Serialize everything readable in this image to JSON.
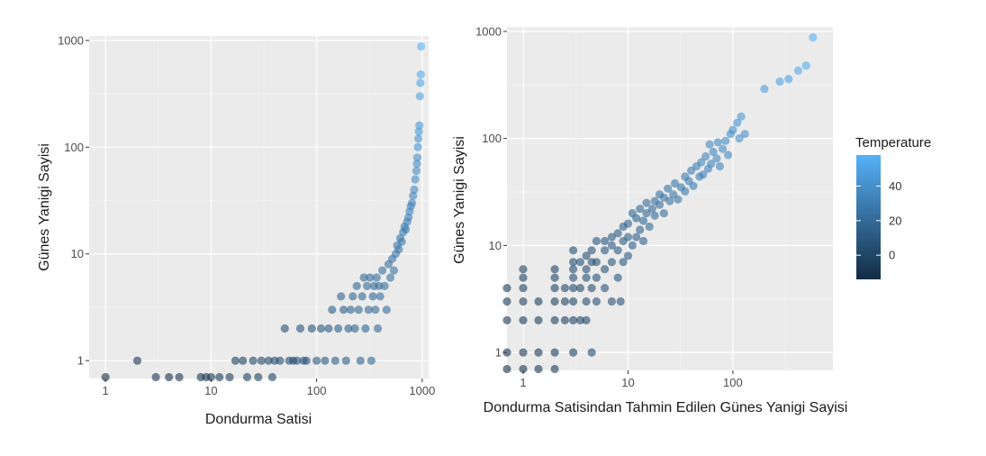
{
  "colors": {
    "panel_bg": "#ebebeb",
    "grid_major": "#ffffff",
    "grid_minor": "#f4f4f4",
    "gradient_low": "#132b43",
    "gradient_high": "#56b1f7"
  },
  "legend": {
    "title": "Temperature",
    "breaks": [
      0,
      20,
      40
    ],
    "break_labels": [
      "0",
      "20",
      "40"
    ],
    "range": [
      -14,
      58
    ],
    "placement": "right"
  },
  "chart_data": [
    {
      "type": "scatter",
      "xlabel": "Dondurma Satisi",
      "ylabel": "Günes Yanigi Sayisi",
      "x_scale": "log10",
      "y_scale": "log10",
      "xlim": [
        0.7,
        1150
      ],
      "ylim": [
        0.68,
        1100
      ],
      "x_ticks": [
        1,
        10,
        100,
        1000
      ],
      "x_tick_labels": [
        "1",
        "10",
        "100",
        "1000"
      ],
      "y_ticks": [
        1,
        10,
        100,
        1000
      ],
      "y_tick_labels": [
        "1",
        "10",
        "100",
        "1000"
      ],
      "grid": true,
      "points": [
        [
          1,
          0.7,
          -12
        ],
        [
          2,
          1,
          -8
        ],
        [
          3,
          0.7,
          -9
        ],
        [
          4,
          0.7,
          -10
        ],
        [
          5,
          0.7,
          -9
        ],
        [
          8,
          0.7,
          -8
        ],
        [
          9,
          0.7,
          -7
        ],
        [
          10,
          0.7,
          -7
        ],
        [
          12,
          0.7,
          -6
        ],
        [
          15,
          0.7,
          -6
        ],
        [
          17,
          1,
          -3
        ],
        [
          20,
          1,
          -2
        ],
        [
          22,
          0.7,
          -4
        ],
        [
          25,
          1,
          0
        ],
        [
          28,
          0.7,
          -2
        ],
        [
          30,
          1,
          1
        ],
        [
          35,
          1,
          2
        ],
        [
          38,
          0.7,
          -1
        ],
        [
          40,
          1,
          3
        ],
        [
          45,
          1,
          4
        ],
        [
          50,
          2,
          6
        ],
        [
          55,
          1,
          5
        ],
        [
          60,
          1,
          6
        ],
        [
          65,
          1,
          7
        ],
        [
          70,
          2,
          8
        ],
        [
          75,
          1,
          7
        ],
        [
          80,
          1,
          8
        ],
        [
          90,
          2,
          9
        ],
        [
          100,
          1,
          10
        ],
        [
          110,
          2,
          11
        ],
        [
          120,
          1,
          10
        ],
        [
          130,
          2,
          12
        ],
        [
          140,
          3,
          13
        ],
        [
          150,
          1,
          12
        ],
        [
          160,
          2,
          14
        ],
        [
          170,
          4,
          15
        ],
        [
          180,
          3,
          15
        ],
        [
          190,
          1,
          13
        ],
        [
          200,
          2,
          16
        ],
        [
          210,
          3,
          17
        ],
        [
          220,
          4,
          17
        ],
        [
          230,
          2,
          16
        ],
        [
          240,
          5,
          18
        ],
        [
          250,
          3,
          18
        ],
        [
          260,
          1,
          15
        ],
        [
          270,
          4,
          19
        ],
        [
          280,
          6,
          20
        ],
        [
          290,
          2,
          18
        ],
        [
          300,
          5,
          20
        ],
        [
          310,
          3,
          19
        ],
        [
          320,
          6,
          21
        ],
        [
          330,
          1,
          17
        ],
        [
          340,
          4,
          20
        ],
        [
          350,
          5,
          21
        ],
        [
          360,
          3,
          20
        ],
        [
          370,
          6,
          22
        ],
        [
          380,
          2,
          19
        ],
        [
          390,
          5,
          22
        ],
        [
          400,
          4,
          22
        ],
        [
          420,
          7,
          23
        ],
        [
          440,
          5,
          23
        ],
        [
          460,
          3,
          21
        ],
        [
          480,
          8,
          24
        ],
        [
          500,
          6,
          24
        ],
        [
          520,
          9,
          25
        ],
        [
          540,
          7,
          25
        ],
        [
          560,
          10,
          26
        ],
        [
          580,
          12,
          27
        ],
        [
          600,
          11,
          27
        ],
        [
          620,
          14,
          28
        ],
        [
          640,
          13,
          28
        ],
        [
          660,
          16,
          29
        ],
        [
          680,
          18,
          30
        ],
        [
          700,
          17,
          30
        ],
        [
          720,
          20,
          31
        ],
        [
          740,
          22,
          32
        ],
        [
          760,
          25,
          33
        ],
        [
          780,
          28,
          34
        ],
        [
          800,
          30,
          34
        ],
        [
          820,
          35,
          35
        ],
        [
          840,
          40,
          36
        ],
        [
          860,
          50,
          38
        ],
        [
          880,
          60,
          39
        ],
        [
          890,
          70,
          40
        ],
        [
          900,
          80,
          41
        ],
        [
          910,
          100,
          43
        ],
        [
          920,
          120,
          44
        ],
        [
          930,
          140,
          45
        ],
        [
          940,
          160,
          46
        ],
        [
          950,
          300,
          50
        ],
        [
          960,
          400,
          52
        ],
        [
          970,
          480,
          54
        ],
        [
          975,
          880,
          58
        ]
      ]
    },
    {
      "type": "scatter",
      "xlabel": "Dondurma Satisindan Tahmin Edilen Günes Yanigi Sayisi",
      "ylabel": "Günes Yanigi Sayisi",
      "x_scale": "log10",
      "y_scale": "log10",
      "xlim": [
        0.7,
        900
      ],
      "ylim": [
        0.68,
        1100
      ],
      "x_ticks": [
        1,
        10,
        100
      ],
      "x_tick_labels": [
        "1",
        "10",
        "100"
      ],
      "y_ticks": [
        1,
        10,
        100,
        1000
      ],
      "y_tick_labels": [
        "1",
        "10",
        "100",
        "1000"
      ],
      "grid": true,
      "points": [
        [
          0.7,
          0.7,
          -11
        ],
        [
          0.7,
          1,
          -9
        ],
        [
          0.7,
          2,
          -7
        ],
        [
          0.7,
          3,
          -6
        ],
        [
          0.7,
          4,
          -5
        ],
        [
          1,
          0.7,
          -9
        ],
        [
          1,
          1,
          -7
        ],
        [
          1,
          2,
          -5
        ],
        [
          1,
          3,
          -4
        ],
        [
          1,
          4,
          -3
        ],
        [
          1,
          5,
          -2
        ],
        [
          1,
          6,
          -1
        ],
        [
          1.4,
          0.7,
          -8
        ],
        [
          1.4,
          1,
          -6
        ],
        [
          1.4,
          2,
          -4
        ],
        [
          1.4,
          3,
          -3
        ],
        [
          2,
          0.7,
          -6
        ],
        [
          2,
          1,
          -5
        ],
        [
          2,
          2,
          -3
        ],
        [
          2,
          3,
          -2
        ],
        [
          2,
          4,
          -1
        ],
        [
          2,
          5,
          0
        ],
        [
          2,
          6,
          1
        ],
        [
          2.5,
          2,
          -1
        ],
        [
          2.5,
          3,
          0
        ],
        [
          2.5,
          4,
          1
        ],
        [
          3,
          1,
          -2
        ],
        [
          3,
          2,
          0
        ],
        [
          3,
          3,
          1
        ],
        [
          3,
          4,
          2
        ],
        [
          3,
          5,
          3
        ],
        [
          3,
          6,
          4
        ],
        [
          3,
          7,
          5
        ],
        [
          3,
          9,
          6
        ],
        [
          3.5,
          2,
          1
        ],
        [
          3.5,
          4,
          3
        ],
        [
          3.5,
          7,
          5
        ],
        [
          4,
          2,
          2
        ],
        [
          4,
          3,
          3
        ],
        [
          4,
          5,
          4
        ],
        [
          4,
          6,
          5
        ],
        [
          4,
          8,
          7
        ],
        [
          4.5,
          1,
          3
        ],
        [
          4.5,
          4,
          5
        ],
        [
          4.5,
          7,
          6
        ],
        [
          4.5,
          9,
          8
        ],
        [
          5,
          3,
          5
        ],
        [
          5,
          5,
          6
        ],
        [
          5,
          7,
          7
        ],
        [
          5,
          11,
          9
        ],
        [
          6,
          4,
          7
        ],
        [
          6,
          6,
          8
        ],
        [
          6,
          9,
          10
        ],
        [
          6,
          11,
          10
        ],
        [
          7,
          3,
          6
        ],
        [
          7,
          7,
          9
        ],
        [
          7,
          10,
          11
        ],
        [
          7,
          12,
          12
        ],
        [
          8,
          5,
          9
        ],
        [
          8,
          9,
          11
        ],
        [
          8,
          13,
          13
        ],
        [
          8.5,
          3,
          8
        ],
        [
          9,
          7,
          11
        ],
        [
          9,
          11,
          13
        ],
        [
          9,
          15,
          14
        ],
        [
          10,
          8,
          12
        ],
        [
          10,
          12,
          14
        ],
        [
          10,
          16,
          15
        ],
        [
          11,
          10,
          14
        ],
        [
          11,
          20,
          17
        ],
        [
          12,
          12,
          15
        ],
        [
          12,
          18,
          17
        ],
        [
          13,
          14,
          16
        ],
        [
          13,
          22,
          18
        ],
        [
          14,
          11,
          15
        ],
        [
          14,
          17,
          18
        ],
        [
          15,
          20,
          19
        ],
        [
          15,
          25,
          20
        ],
        [
          16,
          15,
          18
        ],
        [
          17,
          22,
          20
        ],
        [
          18,
          19,
          20
        ],
        [
          18,
          26,
          22
        ],
        [
          20,
          24,
          22
        ],
        [
          20,
          30,
          23
        ],
        [
          22,
          20,
          21
        ],
        [
          22,
          28,
          23
        ],
        [
          24,
          34,
          25
        ],
        [
          25,
          26,
          24
        ],
        [
          27,
          30,
          26
        ],
        [
          28,
          38,
          27
        ],
        [
          30,
          27,
          25
        ],
        [
          32,
          35,
          27
        ],
        [
          35,
          32,
          27
        ],
        [
          35,
          44,
          29
        ],
        [
          38,
          40,
          29
        ],
        [
          40,
          50,
          31
        ],
        [
          42,
          36,
          29
        ],
        [
          45,
          55,
          32
        ],
        [
          48,
          44,
          31
        ],
        [
          50,
          60,
          33
        ],
        [
          52,
          46,
          32
        ],
        [
          55,
          68,
          34
        ],
        [
          58,
          52,
          33
        ],
        [
          60,
          88,
          36
        ],
        [
          62,
          58,
          34
        ],
        [
          65,
          75,
          35
        ],
        [
          70,
          65,
          36
        ],
        [
          72,
          92,
          37
        ],
        [
          75,
          55,
          34
        ],
        [
          80,
          80,
          37
        ],
        [
          85,
          95,
          38
        ],
        [
          90,
          70,
          37
        ],
        [
          95,
          110,
          39
        ],
        [
          100,
          120,
          40
        ],
        [
          110,
          140,
          42
        ],
        [
          115,
          100,
          40
        ],
        [
          120,
          160,
          44
        ],
        [
          130,
          110,
          41
        ],
        [
          200,
          290,
          48
        ],
        [
          280,
          340,
          50
        ],
        [
          340,
          360,
          51
        ],
        [
          420,
          430,
          53
        ],
        [
          500,
          480,
          54
        ],
        [
          580,
          880,
          58
        ]
      ]
    }
  ]
}
